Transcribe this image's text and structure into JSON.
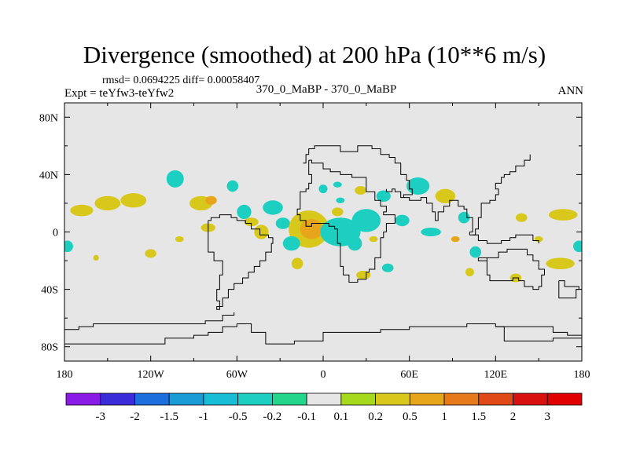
{
  "header": {
    "title": "Divergence (smoothed) at 200 hPa (10**6 m/s)",
    "stats": "rmsd= 0.0694225 diff= 0.00058407",
    "experiment": "Expt = teYfw3-teYfw2",
    "center_label": "370_0_MaBP - 370_0_MaBP",
    "season": "ANN"
  },
  "chart_data": {
    "type": "heatmap",
    "title": "Divergence (smoothed) at 200 hPa (10**6 m/s)",
    "xlabel": "",
    "ylabel": "",
    "xlim": [
      -180,
      180
    ],
    "ylim": [
      -90,
      90
    ],
    "x_ticks": [
      {
        "value": -180,
        "label": "180"
      },
      {
        "value": -120,
        "label": "120W"
      },
      {
        "value": -60,
        "label": "60W"
      },
      {
        "value": 0,
        "label": "0"
      },
      {
        "value": 60,
        "label": "60E"
      },
      {
        "value": 120,
        "label": "120E"
      },
      {
        "value": 180,
        "label": "180"
      }
    ],
    "y_ticks": [
      {
        "value": 80,
        "label": "80N"
      },
      {
        "value": 40,
        "label": "40N"
      },
      {
        "value": 0,
        "label": "0"
      },
      {
        "value": -40,
        "label": "40S"
      },
      {
        "value": -80,
        "label": "80S"
      }
    ],
    "background_color": "#e6e6e6",
    "levels": [
      "-3",
      "-2",
      "-1.5",
      "-1",
      "-0.5",
      "-0.2",
      "-0.1",
      "0.1",
      "0.2",
      "0.5",
      "1",
      "1.5",
      "2",
      "3"
    ],
    "colors": [
      "#8a1ae6",
      "#3a2cd9",
      "#1e6fde",
      "#1a9bd6",
      "#19bed6",
      "#1ccfc0",
      "#23d68b",
      "#e6e6e6",
      "#a6d91c",
      "#d9c81c",
      "#e6a51a",
      "#e6791a",
      "#e04a16",
      "#d91010",
      "#e00000"
    ],
    "regions": [
      {
        "lon": -168,
        "lat": 15,
        "rx": 8,
        "ry": 4,
        "value": 0.3
      },
      {
        "lon": -150,
        "lat": 20,
        "rx": 9,
        "ry": 5,
        "value": 0.3
      },
      {
        "lon": -132,
        "lat": 22,
        "rx": 9,
        "ry": 5,
        "value": 0.3
      },
      {
        "lon": -103,
        "lat": 37,
        "rx": 6,
        "ry": 6,
        "value": -0.3
      },
      {
        "lon": -85,
        "lat": 20,
        "rx": 8,
        "ry": 5,
        "value": 0.3
      },
      {
        "lon": -78,
        "lat": 22,
        "rx": 4,
        "ry": 3,
        "value": 0.6
      },
      {
        "lon": -63,
        "lat": 32,
        "rx": 4,
        "ry": 4,
        "value": -0.3
      },
      {
        "lon": -55,
        "lat": 14,
        "rx": 5,
        "ry": 5,
        "value": -0.3
      },
      {
        "lon": -80,
        "lat": 3,
        "rx": 5,
        "ry": 3,
        "value": 0.3
      },
      {
        "lon": -50,
        "lat": 7,
        "rx": 5,
        "ry": 3,
        "value": 0.3
      },
      {
        "lon": -35,
        "lat": 17,
        "rx": 7,
        "ry": 5,
        "value": -0.3
      },
      {
        "lon": -43,
        "lat": 0,
        "rx": 5,
        "ry": 5,
        "value": 0.3
      },
      {
        "lon": -28,
        "lat": 6,
        "rx": 5,
        "ry": 4,
        "value": -0.3
      },
      {
        "lon": -10,
        "lat": 2,
        "rx": 14,
        "ry": 13,
        "value": 0.35
      },
      {
        "lon": -8,
        "lat": 2,
        "rx": 8,
        "ry": 7,
        "value": 0.7
      },
      {
        "lon": -22,
        "lat": -8,
        "rx": 6,
        "ry": 5,
        "value": -0.3
      },
      {
        "lon": -18,
        "lat": -22,
        "rx": 4,
        "ry": 4,
        "value": 0.3
      },
      {
        "lon": 12,
        "lat": 0,
        "rx": 14,
        "ry": 10,
        "value": -0.3
      },
      {
        "lon": 0,
        "lat": 30,
        "rx": 3,
        "ry": 3,
        "value": -0.3
      },
      {
        "lon": 12,
        "lat": 22,
        "rx": 3,
        "ry": 2,
        "value": -0.3
      },
      {
        "lon": 10,
        "lat": 33,
        "rx": 3,
        "ry": 2,
        "value": -0.3
      },
      {
        "lon": 30,
        "lat": 8,
        "rx": 10,
        "ry": 8,
        "value": -0.3
      },
      {
        "lon": 10,
        "lat": 14,
        "rx": 4,
        "ry": 3,
        "value": 0.3
      },
      {
        "lon": 26,
        "lat": 29,
        "rx": 4,
        "ry": 3,
        "value": 0.3
      },
      {
        "lon": 42,
        "lat": 25,
        "rx": 5,
        "ry": 4,
        "value": -0.3
      },
      {
        "lon": 55,
        "lat": 8,
        "rx": 5,
        "ry": 4,
        "value": -0.3
      },
      {
        "lon": 22,
        "lat": -8,
        "rx": 5,
        "ry": 5,
        "value": -0.3
      },
      {
        "lon": 35,
        "lat": -5,
        "rx": 3,
        "ry": 2,
        "value": 0.3
      },
      {
        "lon": 28,
        "lat": -30,
        "rx": 5,
        "ry": 3,
        "value": 0.3
      },
      {
        "lon": 45,
        "lat": -25,
        "rx": 4,
        "ry": 3,
        "value": -0.3
      },
      {
        "lon": 66,
        "lat": 32,
        "rx": 8,
        "ry": 6,
        "value": -0.3
      },
      {
        "lon": 85,
        "lat": 25,
        "rx": 7,
        "ry": 5,
        "value": 0.3
      },
      {
        "lon": 75,
        "lat": 0,
        "rx": 7,
        "ry": 3,
        "value": -0.3
      },
      {
        "lon": 98,
        "lat": 10,
        "rx": 4,
        "ry": 4,
        "value": -0.3
      },
      {
        "lon": 92,
        "lat": -5,
        "rx": 3,
        "ry": 2,
        "value": 0.6
      },
      {
        "lon": 106,
        "lat": -14,
        "rx": 4,
        "ry": 4,
        "value": -0.3
      },
      {
        "lon": 102,
        "lat": -28,
        "rx": 3,
        "ry": 3,
        "value": 0.3
      },
      {
        "lon": 138,
        "lat": 10,
        "rx": 4,
        "ry": 3,
        "value": 0.3
      },
      {
        "lon": 150,
        "lat": -5,
        "rx": 3,
        "ry": 2,
        "value": 0.3
      },
      {
        "lon": 167,
        "lat": 12,
        "rx": 10,
        "ry": 4,
        "value": 0.3
      },
      {
        "lon": 165,
        "lat": -22,
        "rx": 10,
        "ry": 4,
        "value": 0.3
      },
      {
        "lon": 134,
        "lat": -32,
        "rx": 4,
        "ry": 3,
        "value": 0.3
      },
      {
        "lon": -178,
        "lat": -10,
        "rx": 4,
        "ry": 4,
        "value": -0.3
      },
      {
        "lon": 178,
        "lat": -10,
        "rx": 4,
        "ry": 4,
        "value": -0.3
      },
      {
        "lon": -120,
        "lat": -15,
        "rx": 4,
        "ry": 3,
        "value": 0.3
      },
      {
        "lon": -158,
        "lat": -18,
        "rx": 2,
        "ry": 2,
        "value": 0.3
      },
      {
        "lon": -100,
        "lat": -5,
        "rx": 3,
        "ry": 2,
        "value": 0.3
      }
    ],
    "coastlines": [
      [
        [
          -10,
          50
        ],
        [
          -8,
          50
        ],
        [
          -8,
          48
        ],
        [
          0,
          48
        ],
        [
          0,
          44
        ],
        [
          5,
          44
        ],
        [
          5,
          42
        ],
        [
          12,
          42
        ],
        [
          12,
          40
        ],
        [
          18,
          40
        ],
        [
          20,
          38
        ],
        [
          28,
          38
        ],
        [
          30,
          36
        ],
        [
          30,
          28
        ],
        [
          36,
          28
        ],
        [
          36,
          22
        ],
        [
          40,
          22
        ],
        [
          40,
          18
        ],
        [
          44,
          18
        ],
        [
          44,
          14
        ],
        [
          42,
          12
        ],
        [
          46,
          12
        ],
        [
          50,
          10
        ],
        [
          50,
          6
        ],
        [
          46,
          6
        ],
        [
          44,
          0
        ],
        [
          42,
          -4
        ],
        [
          40,
          -10
        ],
        [
          40,
          -18
        ],
        [
          36,
          -22
        ],
        [
          36,
          -26
        ],
        [
          32,
          -28
        ],
        [
          30,
          -33
        ],
        [
          24,
          -35
        ],
        [
          18,
          -35
        ],
        [
          18,
          -30
        ],
        [
          14,
          -24
        ],
        [
          12,
          -16
        ],
        [
          12,
          -8
        ],
        [
          10,
          -2
        ],
        [
          10,
          2
        ],
        [
          8,
          4
        ],
        [
          4,
          6
        ],
        [
          0,
          6
        ],
        [
          -6,
          6
        ],
        [
          -8,
          4
        ],
        [
          -12,
          8
        ],
        [
          -16,
          12
        ],
        [
          -18,
          16
        ],
        [
          -16,
          22
        ],
        [
          -16,
          28
        ],
        [
          -12,
          30
        ],
        [
          -10,
          34
        ],
        [
          -8,
          36
        ],
        [
          -8,
          40
        ],
        [
          -10,
          44
        ],
        [
          -10,
          50
        ]
      ],
      [
        [
          -80,
          8
        ],
        [
          -78,
          10
        ],
        [
          -72,
          12
        ],
        [
          -64,
          10
        ],
        [
          -60,
          8
        ],
        [
          -54,
          6
        ],
        [
          -50,
          2
        ],
        [
          -44,
          -2
        ],
        [
          -38,
          -4
        ],
        [
          -35,
          -8
        ],
        [
          -36,
          -14
        ],
        [
          -40,
          -20
        ],
        [
          -44,
          -24
        ],
        [
          -48,
          -28
        ],
        [
          -52,
          -32
        ],
        [
          -56,
          -36
        ],
        [
          -62,
          -40
        ],
        [
          -66,
          -46
        ],
        [
          -70,
          -52
        ],
        [
          -74,
          -54
        ],
        [
          -72,
          -48
        ],
        [
          -74,
          -40
        ],
        [
          -72,
          -30
        ],
        [
          -70,
          -20
        ],
        [
          -76,
          -14
        ],
        [
          -80,
          -6
        ],
        [
          -80,
          0
        ],
        [
          -80,
          8
        ]
      ],
      [
        [
          -14,
          48
        ],
        [
          -12,
          54
        ],
        [
          -10,
          58
        ],
        [
          -6,
          60
        ],
        [
          4,
          60
        ],
        [
          12,
          56
        ],
        [
          20,
          56
        ],
        [
          24,
          60
        ],
        [
          30,
          60
        ],
        [
          34,
          58
        ],
        [
          40,
          54
        ],
        [
          46,
          52
        ],
        [
          50,
          48
        ],
        [
          54,
          44
        ],
        [
          54,
          40
        ],
        [
          58,
          36
        ],
        [
          60,
          30
        ],
        [
          62,
          26
        ],
        [
          56,
          24
        ],
        [
          54,
          28
        ],
        [
          50,
          30
        ],
        [
          48,
          28
        ],
        [
          44,
          30
        ]
      ],
      [
        [
          56,
          24
        ],
        [
          60,
          22
        ],
        [
          66,
          22
        ],
        [
          68,
          24
        ],
        [
          72,
          20
        ],
        [
          76,
          14
        ],
        [
          78,
          8
        ],
        [
          80,
          14
        ],
        [
          84,
          18
        ],
        [
          88,
          22
        ],
        [
          92,
          22
        ],
        [
          94,
          18
        ],
        [
          98,
          16
        ],
        [
          100,
          10
        ],
        [
          104,
          4
        ],
        [
          104,
          0
        ],
        [
          102,
          -2
        ],
        [
          106,
          2
        ],
        [
          108,
          10
        ],
        [
          110,
          16
        ],
        [
          110,
          20
        ],
        [
          116,
          22
        ],
        [
          120,
          26
        ],
        [
          122,
          30
        ],
        [
          120,
          34
        ],
        [
          124,
          38
        ],
        [
          126,
          40
        ],
        [
          130,
          42
        ],
        [
          134,
          46
        ],
        [
          140,
          50
        ],
        [
          144,
          54
        ]
      ],
      [
        [
          108,
          -18
        ],
        [
          114,
          -22
        ],
        [
          114,
          -30
        ],
        [
          116,
          -34
        ],
        [
          124,
          -34
        ],
        [
          132,
          -32
        ],
        [
          136,
          -34
        ],
        [
          140,
          -38
        ],
        [
          146,
          -40
        ],
        [
          150,
          -38
        ],
        [
          152,
          -30
        ],
        [
          154,
          -26
        ],
        [
          150,
          -20
        ],
        [
          146,
          -16
        ],
        [
          142,
          -12
        ],
        [
          136,
          -12
        ],
        [
          132,
          -12
        ],
        [
          128,
          -14
        ],
        [
          122,
          -18
        ],
        [
          114,
          -20
        ],
        [
          108,
          -18
        ]
      ],
      [
        [
          164,
          -34
        ],
        [
          168,
          -38
        ],
        [
          178,
          -40
        ],
        [
          176,
          -46
        ],
        [
          168,
          -46
        ],
        [
          164,
          -40
        ],
        [
          164,
          -34
        ]
      ],
      [
        [
          104,
          -2
        ],
        [
          108,
          -6
        ],
        [
          114,
          -8
        ],
        [
          120,
          -8
        ],
        [
          124,
          -6
        ],
        [
          130,
          -4
        ],
        [
          134,
          -2
        ],
        [
          140,
          -2
        ],
        [
          146,
          -6
        ],
        [
          150,
          -8
        ]
      ],
      [
        [
          -180,
          -68
        ],
        [
          -170,
          -66
        ],
        [
          -160,
          -64
        ],
        [
          -140,
          -64
        ],
        [
          -120,
          -64
        ],
        [
          -100,
          -64
        ],
        [
          -82,
          -62
        ],
        [
          -70,
          -58
        ],
        [
          -62,
          -56
        ]
      ],
      [
        [
          -180,
          -78
        ],
        [
          -140,
          -78
        ],
        [
          -110,
          -74
        ],
        [
          -90,
          -72
        ],
        [
          -80,
          -70
        ],
        [
          -70,
          -66
        ],
        [
          -60,
          -64
        ]
      ],
      [
        [
          -60,
          -64
        ],
        [
          -50,
          -70
        ],
        [
          -40,
          -78
        ],
        [
          -20,
          -76
        ],
        [
          0,
          -70
        ],
        [
          20,
          -70
        ],
        [
          40,
          -68
        ],
        [
          60,
          -66
        ],
        [
          80,
          -66
        ],
        [
          100,
          -64
        ],
        [
          120,
          -66
        ],
        [
          140,
          -66
        ],
        [
          160,
          -70
        ],
        [
          170,
          -72
        ],
        [
          180,
          -74
        ]
      ],
      [
        [
          120,
          -66
        ],
        [
          126,
          -76
        ],
        [
          140,
          -76
        ],
        [
          160,
          -74
        ],
        [
          180,
          -76
        ]
      ]
    ]
  }
}
